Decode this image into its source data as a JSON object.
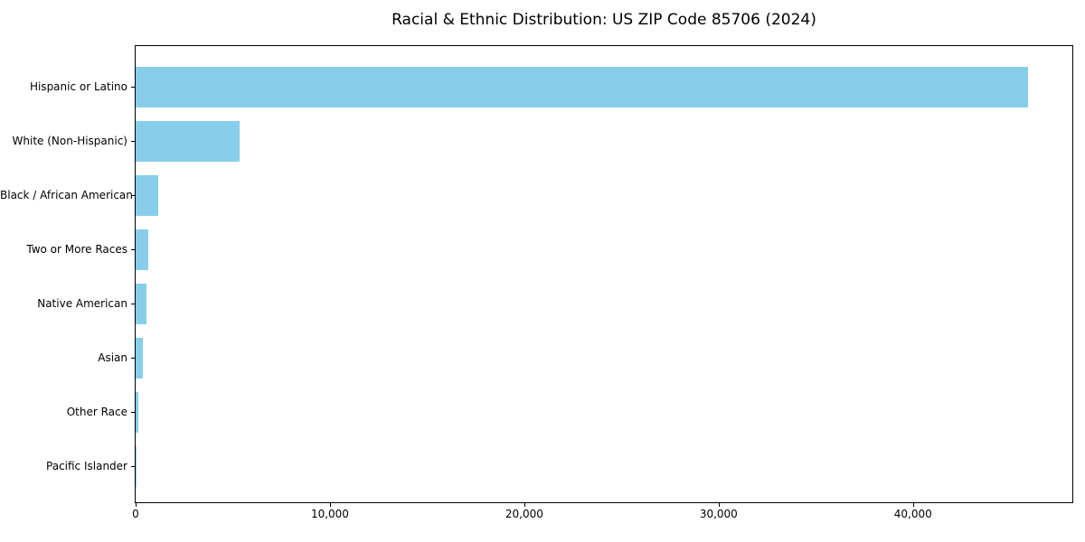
{
  "colors": {
    "bar": "#87CEEB",
    "axis": "#000000",
    "text": "#000000",
    "background": "#FFFFFF"
  },
  "chart_data": {
    "type": "bar",
    "orientation": "horizontal",
    "title": "Racial & Ethnic Distribution: US ZIP Code 85706 (2024)",
    "categories": [
      "Hispanic or Latino",
      "White (Non-Hispanic)",
      "Black / African American",
      "Two or More Races",
      "Native American",
      "Asian",
      "Other Race",
      "Pacific Islander"
    ],
    "values": [
      45900,
      5340,
      1160,
      650,
      560,
      370,
      140,
      25
    ],
    "xlabel": "",
    "ylabel": "",
    "xlim": [
      0,
      48200
    ],
    "x_ticks": [
      0,
      10000,
      20000,
      30000,
      40000
    ],
    "x_tick_labels": [
      "0",
      "10,000",
      "20,000",
      "30,000",
      "40,000"
    ],
    "grid": false,
    "legend": "none",
    "bar_color": "#87CEEB",
    "frame": "full-box"
  }
}
